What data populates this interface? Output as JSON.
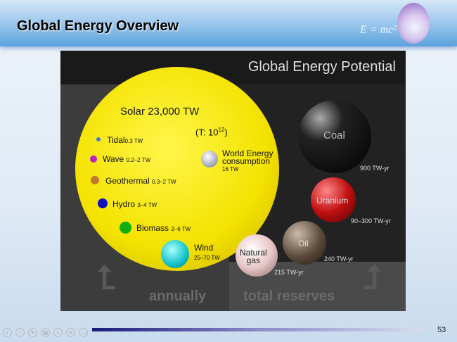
{
  "header": {
    "title": "Global Energy Overview",
    "logo_text": "E = mc²"
  },
  "slide": {
    "title": "Global Energy Potential",
    "solar": {
      "label": "Solar 23,000 TW",
      "note": "(T: 10",
      "note_sup": "12",
      "note_end": ")"
    },
    "renewables": [
      {
        "name": "Tidal",
        "value": "0.3 TW",
        "color": "#3a7ad8"
      },
      {
        "name": "Wave",
        "value": "0.2–2 TW",
        "color": "#c020c0"
      },
      {
        "name": "Geothermal",
        "value": "0.3–2 TW",
        "color": "#c07830"
      },
      {
        "name": "Hydro",
        "value": "3–4 TW",
        "color": "#1010c0"
      },
      {
        "name": "Biomass",
        "value": "2–6 TW",
        "color": "#10b010"
      },
      {
        "name": "Wind",
        "value": "25–70 TW",
        "color": "#10c0c8"
      }
    ],
    "consumption": {
      "name1": "World Energy",
      "name2": "consumption",
      "value": "16 TW"
    },
    "reserves": [
      {
        "name": "Coal",
        "value": "900 TW-yr",
        "color": "#111111"
      },
      {
        "name": "Uranium",
        "value": "90–300 TW-yr",
        "color": "#c01010"
      },
      {
        "name": "Oil",
        "value": "240 TW-yr",
        "color": "#5a4a38"
      },
      {
        "name1": "Natural",
        "name2": "gas",
        "value": "215 TW-yr",
        "color": "#e8c8c8"
      }
    ],
    "footer_left": "annually",
    "footer_right": "total reserves"
  },
  "page_number": "53",
  "nav_icons": [
    "prev-icon",
    "next-icon",
    "pen-icon",
    "slides-icon",
    "zoom-icon",
    "menu-icon",
    "more-icon"
  ]
}
